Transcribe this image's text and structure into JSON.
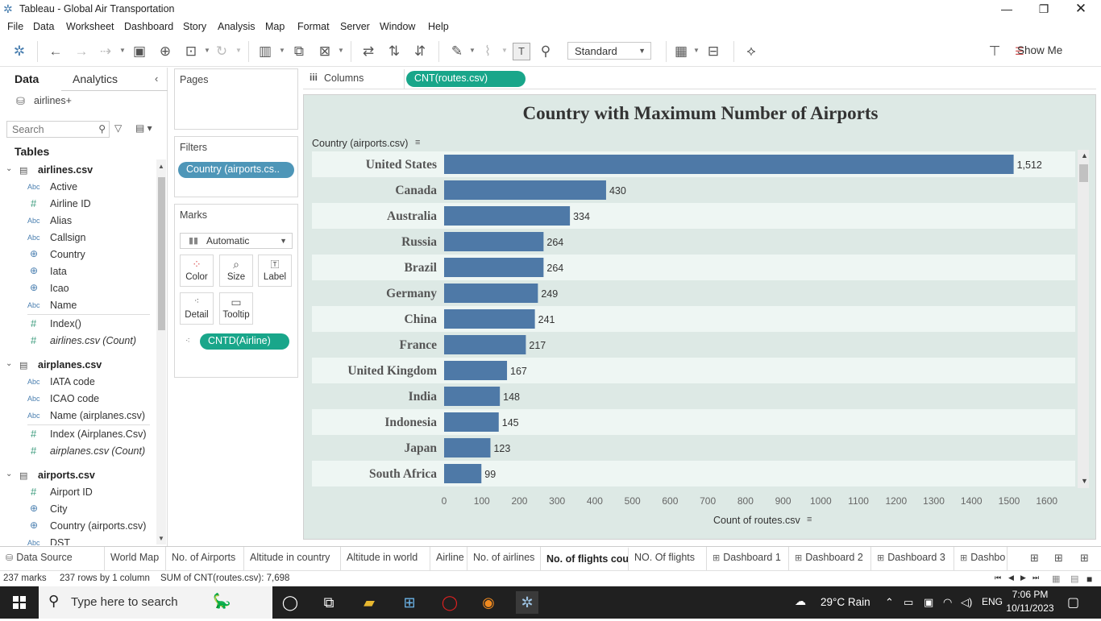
{
  "window": {
    "title": "Tableau - Global Air Transportation"
  },
  "menu": [
    "File",
    "Data",
    "Worksheet",
    "Dashboard",
    "Story",
    "Analysis",
    "Map",
    "Format",
    "Server",
    "Window",
    "Help"
  ],
  "toolbar": {
    "fit_select": "Standard",
    "show_me": "Show Me"
  },
  "datapane": {
    "tab_data": "Data",
    "tab_analytics": "Analytics",
    "datasource": "airlines+",
    "search_placeholder": "Search",
    "tables_heading": "Tables",
    "tables": [
      {
        "name": "airlines.csv",
        "fields": [
          {
            "icon": "Abc",
            "label": "Active"
          },
          {
            "icon": "#",
            "label": "Airline ID"
          },
          {
            "icon": "Abc",
            "label": "Alias"
          },
          {
            "icon": "Abc",
            "label": "Callsign"
          },
          {
            "icon": "globe",
            "label": "Country"
          },
          {
            "icon": "globe",
            "label": "Iata"
          },
          {
            "icon": "globe",
            "label": "Icao"
          },
          {
            "icon": "Abc",
            "label": "Name"
          },
          {
            "icon": "#",
            "label": "Index()"
          },
          {
            "icon": "#",
            "label": "airlines.csv (Count)",
            "italic": true
          }
        ]
      },
      {
        "name": "airplanes.csv",
        "fields": [
          {
            "icon": "Abc",
            "label": "IATA code"
          },
          {
            "icon": "Abc",
            "label": "ICAO code"
          },
          {
            "icon": "Abc",
            "label": "Name (airplanes.csv)"
          },
          {
            "icon": "#",
            "label": "Index (Airplanes.Csv)"
          },
          {
            "icon": "#",
            "label": "airplanes.csv (Count)",
            "italic": true
          }
        ]
      },
      {
        "name": "airports.csv",
        "fields": [
          {
            "icon": "#",
            "label": "Airport ID"
          },
          {
            "icon": "globe",
            "label": "City"
          },
          {
            "icon": "globe",
            "label": "Country (airports.csv)"
          },
          {
            "icon": "Abc",
            "label": "DST"
          }
        ]
      }
    ]
  },
  "pages": {
    "title": "Pages"
  },
  "filters": {
    "title": "Filters",
    "pill": "Country (airports.cs.."
  },
  "marks": {
    "title": "Marks",
    "type": "Automatic",
    "buttons": [
      "Color",
      "Size",
      "Label",
      "Detail",
      "Tooltip"
    ],
    "detail_pill": "CNTD(Airline)"
  },
  "columns": {
    "label": "Columns",
    "pill": "CNT(routes.csv)"
  },
  "viz": {
    "y_field": "Country (airports.csv)",
    "x_title": "Count of routes.csv"
  },
  "chart_data": {
    "type": "bar",
    "title": "Country with Maximum Number of Airports",
    "orientation": "horizontal",
    "categories": [
      "United States",
      "Canada",
      "Australia",
      "Russia",
      "Brazil",
      "Germany",
      "China",
      "France",
      "United Kingdom",
      "India",
      "Indonesia",
      "Japan",
      "South Africa"
    ],
    "values": [
      1512,
      430,
      334,
      264,
      264,
      249,
      241,
      217,
      167,
      148,
      145,
      123,
      99
    ],
    "value_labels": [
      "1,512",
      "430",
      "334",
      "264",
      "264",
      "249",
      "241",
      "217",
      "167",
      "148",
      "145",
      "123",
      "99"
    ],
    "xticks": [
      0,
      100,
      200,
      300,
      400,
      500,
      600,
      700,
      800,
      900,
      1000,
      1100,
      1200,
      1300,
      1400,
      1500,
      1600
    ],
    "xlim": [
      0,
      1650
    ],
    "xlabel": "Count of routes.csv",
    "ylabel": "Country (airports.csv)",
    "bar_color": "#4e79a7",
    "band_colors": [
      "#eef6f3",
      "#dde9e5"
    ]
  },
  "sheet_tabs": [
    {
      "label": "Data Source",
      "kind": "source"
    },
    {
      "label": "World Map"
    },
    {
      "label": "No. of Airports"
    },
    {
      "label": "Altitude in country"
    },
    {
      "label": "Altitude in world"
    },
    {
      "label": "Airline"
    },
    {
      "label": "No. of airlines"
    },
    {
      "label": "No. of flights country",
      "active": true
    },
    {
      "label": "NO. Of flights"
    },
    {
      "label": "Dashboard 1",
      "kind": "dashboard"
    },
    {
      "label": "Dashboard 2",
      "kind": "dashboard"
    },
    {
      "label": "Dashboard 3",
      "kind": "dashboard"
    },
    {
      "label": "Dashbo",
      "kind": "dashboard"
    }
  ],
  "status": {
    "marks": "237 marks",
    "rows": "237 rows by 1 column",
    "sum": "SUM of CNT(routes.csv): 7,698"
  },
  "taskbar": {
    "search_placeholder": "Type here to search",
    "weather": "29°C  Rain",
    "lang": "ENG",
    "time": "7:06 PM",
    "date": "10/11/2023"
  }
}
